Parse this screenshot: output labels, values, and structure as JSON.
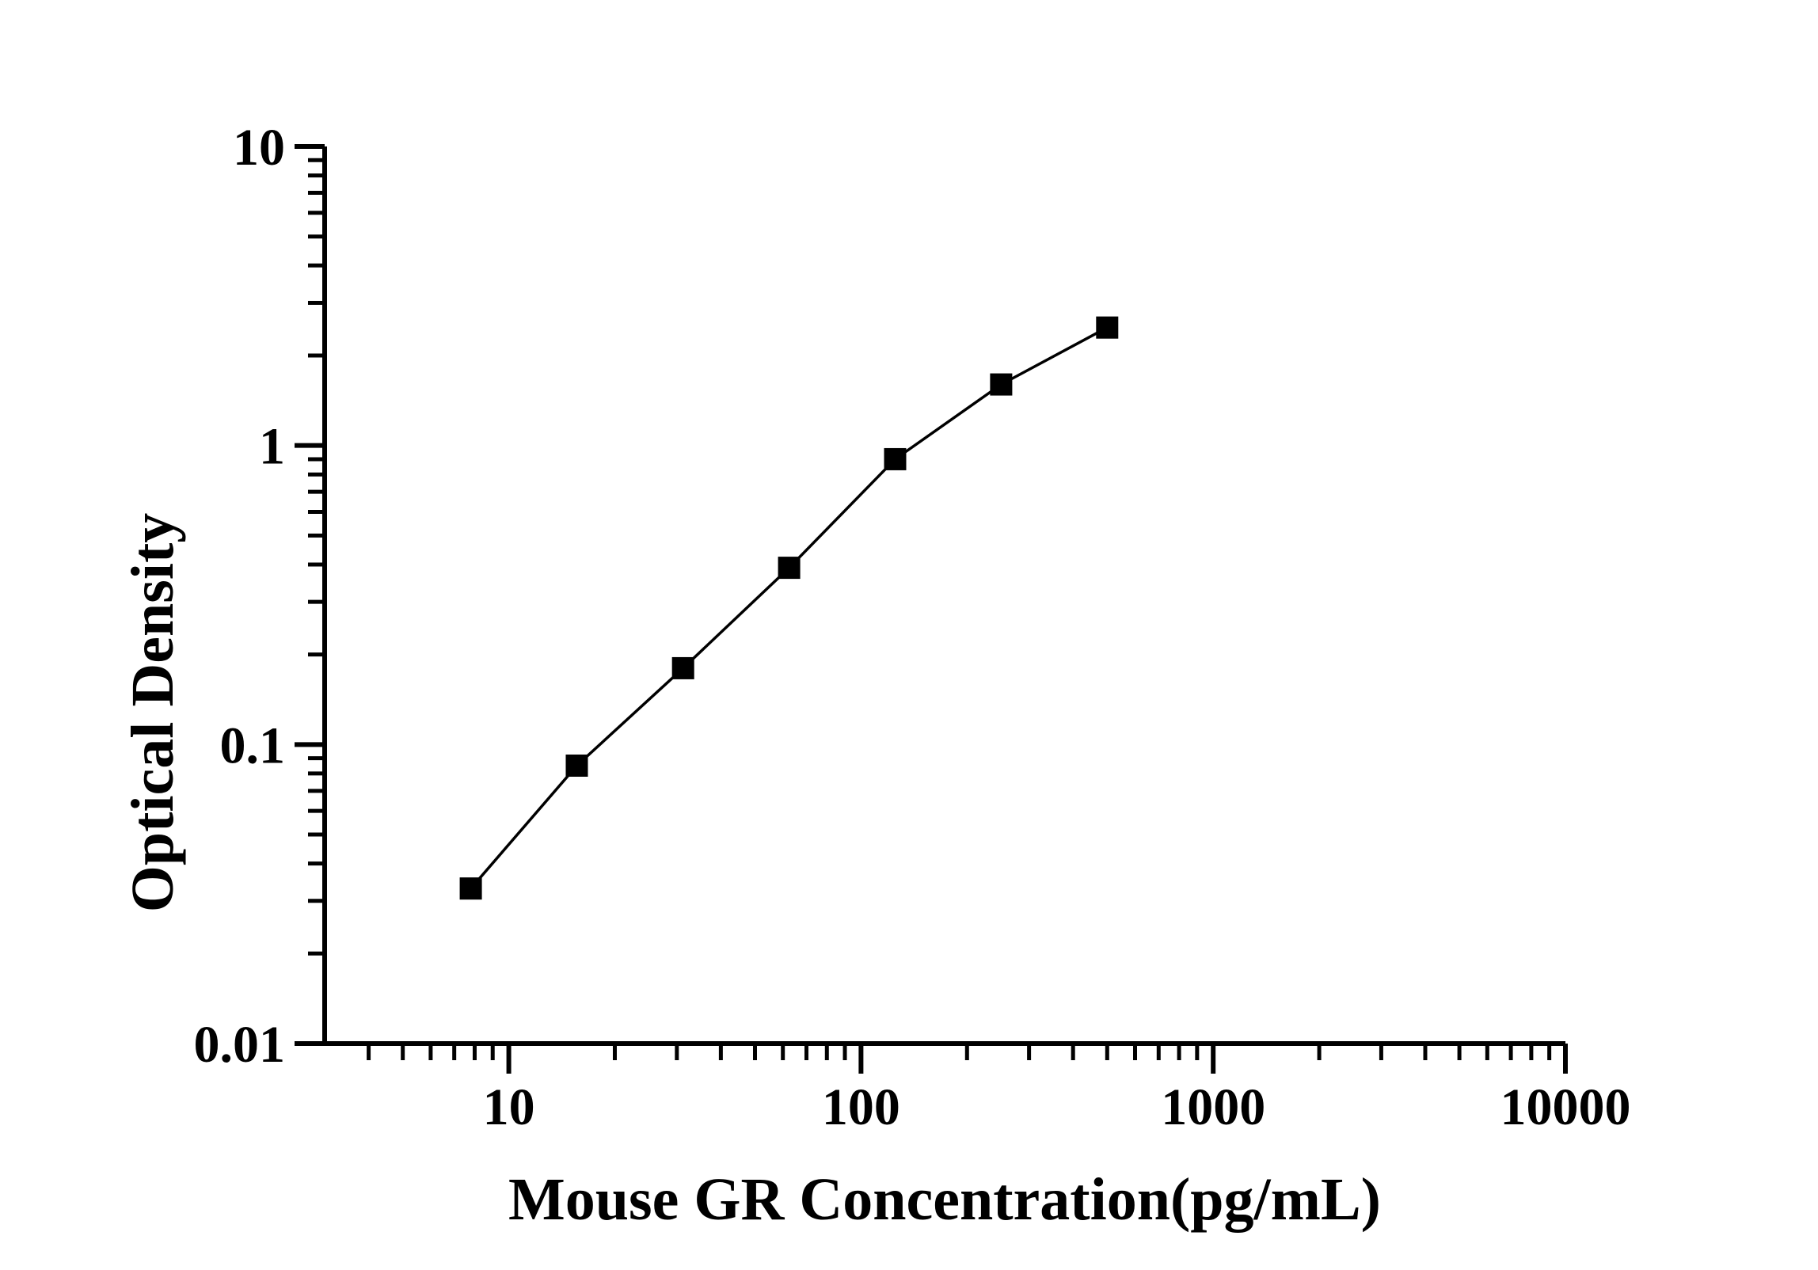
{
  "figure": {
    "background_color": "#ffffff",
    "ink_color": "#000000"
  },
  "chart_data": {
    "type": "line",
    "subtype": "scatter-with-connecting-line",
    "title": "",
    "xlabel": "Mouse GR Concentration(pg/mL)",
    "ylabel": "Optical Density",
    "x_scale": "log",
    "y_scale": "log",
    "x_range": [
      3,
      10000
    ],
    "y_range": [
      0.01,
      10
    ],
    "x_ticks": [
      {
        "value": 10,
        "label": "10"
      },
      {
        "value": 100,
        "label": "100"
      },
      {
        "value": 1000,
        "label": "1000"
      },
      {
        "value": 10000,
        "label": "10000"
      }
    ],
    "y_ticks": [
      {
        "value": 0.01,
        "label": "0.01"
      },
      {
        "value": 0.1,
        "label": "0.1"
      },
      {
        "value": 1,
        "label": "1"
      },
      {
        "value": 10,
        "label": "10"
      }
    ],
    "series": [
      {
        "name": "standard-curve",
        "marker": "filled-square",
        "marker_color": "#000000",
        "line_color": "#000000",
        "points": [
          {
            "x": 7.8,
            "y": 0.033
          },
          {
            "x": 15.6,
            "y": 0.085
          },
          {
            "x": 31.25,
            "y": 0.18
          },
          {
            "x": 62.5,
            "y": 0.39
          },
          {
            "x": 125,
            "y": 0.9
          },
          {
            "x": 250,
            "y": 1.6
          },
          {
            "x": 500,
            "y": 2.48
          }
        ]
      }
    ],
    "grid": false,
    "legend": false
  }
}
